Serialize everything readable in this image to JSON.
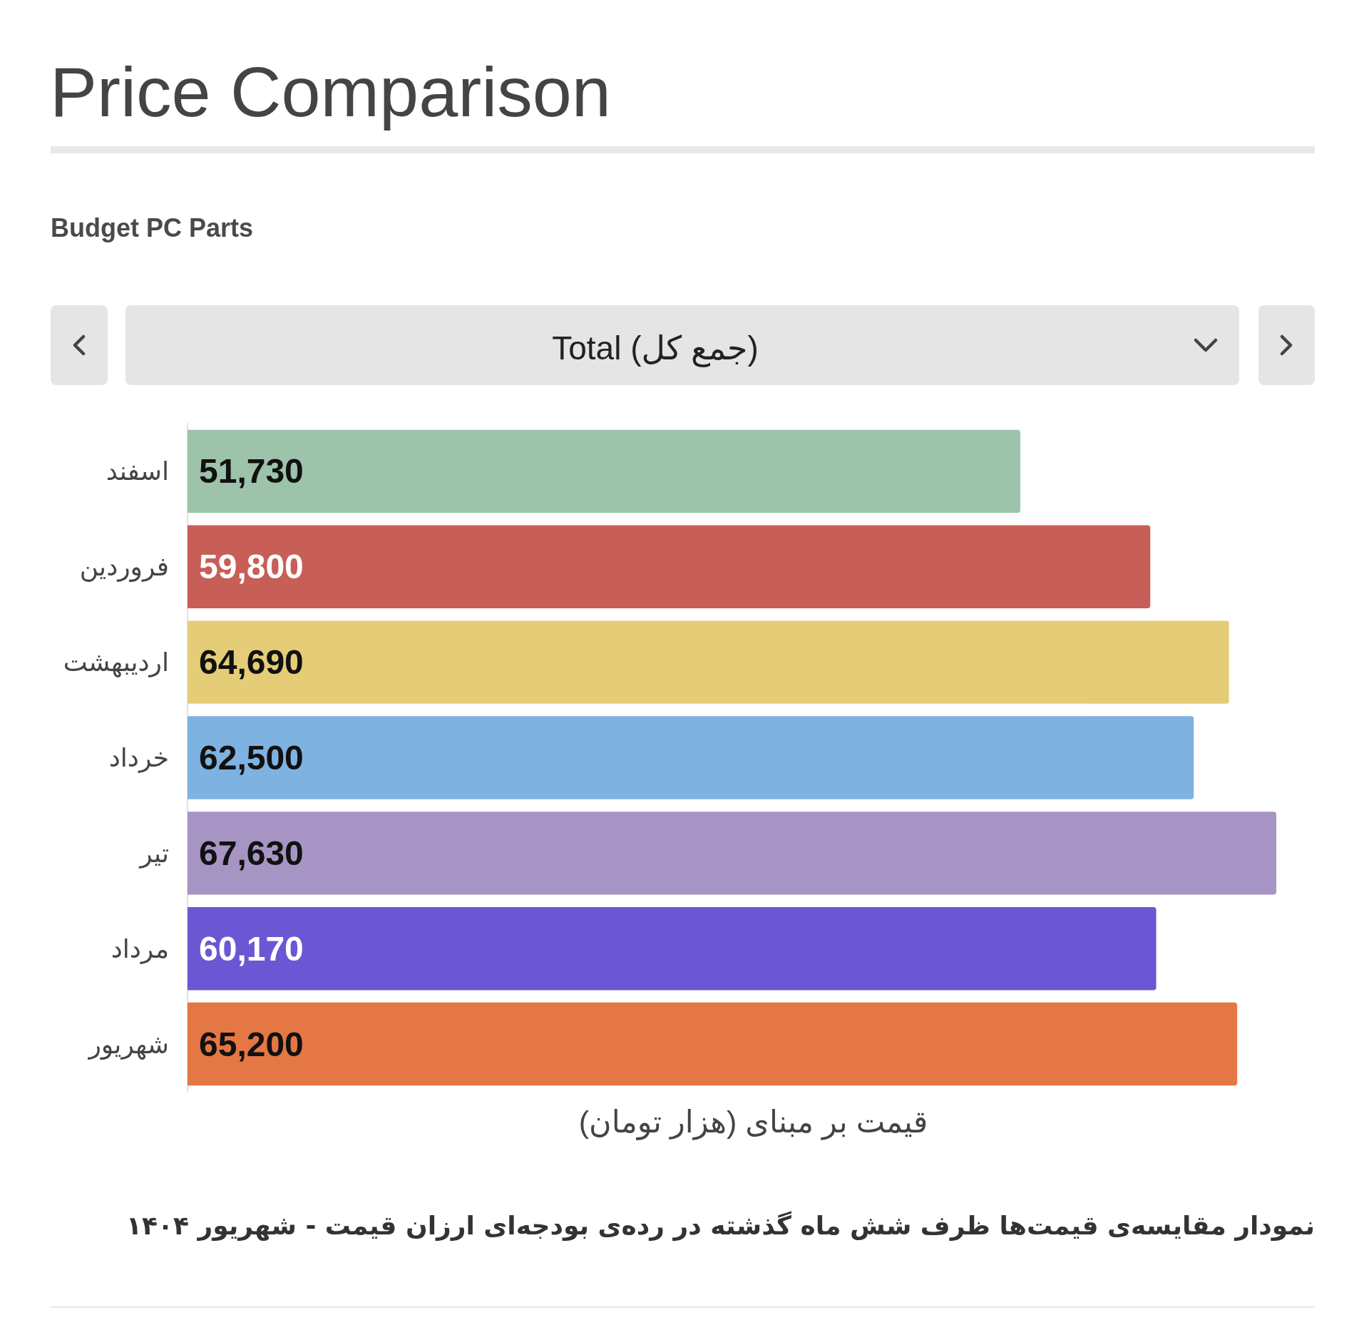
{
  "chart_data": {
    "type": "bar",
    "orientation": "horizontal",
    "title": "Price Comparison",
    "subtitle": "Budget PC Parts",
    "xlabel": "قیمت بر مبنای (هزار تومان)",
    "categories": [
      "اسفند",
      "فروردین",
      "اردیبهشت",
      "خرداد",
      "تیر",
      "مرداد",
      "شهریور"
    ],
    "values": [
      51730,
      59800,
      64690,
      62500,
      67630,
      60170,
      65200
    ],
    "value_labels": [
      "51,730",
      "59,800",
      "64,690",
      "62,500",
      "67,630",
      "60,170",
      "65,200"
    ],
    "colors": [
      "#9dc3aa",
      "#c75f58",
      "#e5cc77",
      "#7eb2e0",
      "#a695c4",
      "#6b57d3",
      "#e57744"
    ],
    "tick_labels": "y",
    "annotations": [
      "Total (جمع کل)",
      "نمودار مقایسه‌ی قیمت‌ها ظرف شش ماه گذشته در رده‌ی بودجه‌ای ارزان قیمت - شهریور ۱۴۰۴"
    ]
  }
}
